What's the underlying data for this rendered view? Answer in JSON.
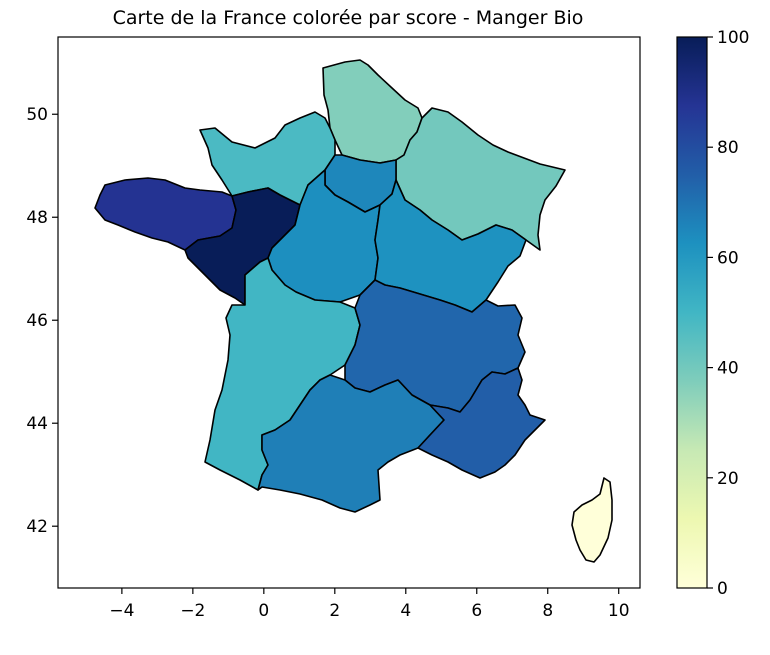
{
  "chart_data": {
    "type": "choropleth",
    "title": "Carte de la France colorée par score - Manger Bio",
    "xlim": [
      -5.8,
      10.6
    ],
    "ylim": [
      40.8,
      51.5
    ],
    "x_ticks": [
      -4,
      -2,
      0,
      2,
      4,
      6,
      8,
      10
    ],
    "y_ticks": [
      42,
      44,
      46,
      48,
      50
    ],
    "colorbar": {
      "colormap": "YlGnBu",
      "range": [
        0,
        100
      ],
      "ticks": [
        0,
        20,
        40,
        60,
        80,
        100
      ],
      "stops": [
        "#ffffd9",
        "#edf8b1",
        "#c7e9b4",
        "#7fcdbb",
        "#41b6c4",
        "#1d91c0",
        "#225ea8",
        "#253494",
        "#081d58"
      ]
    },
    "regions": [
      {
        "id": "hauts-de-france",
        "score": 37
      },
      {
        "id": "grand-est",
        "score": 40
      },
      {
        "id": "normandie",
        "score": 48
      },
      {
        "id": "ile-de-france",
        "score": 65
      },
      {
        "id": "bretagne",
        "score": 88
      },
      {
        "id": "pays-de-la-loire",
        "score": 100
      },
      {
        "id": "centre-val-de-loire",
        "score": 63
      },
      {
        "id": "bourgogne-franche-comte",
        "score": 62
      },
      {
        "id": "nouvelle-aquitaine",
        "score": 50
      },
      {
        "id": "auvergne-rhone-alpes",
        "score": 73
      },
      {
        "id": "occitanie",
        "score": 67
      },
      {
        "id": "provence-alpes-cote-d-azur",
        "score": 75
      },
      {
        "id": "corse",
        "score": 0
      }
    ]
  }
}
